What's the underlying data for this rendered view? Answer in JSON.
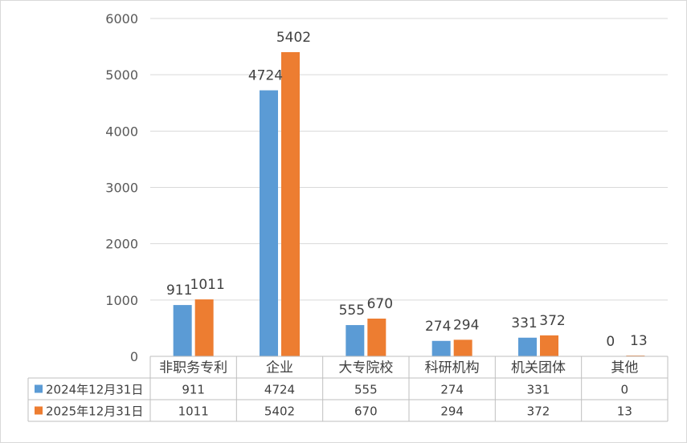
{
  "chart_data": {
    "type": "bar",
    "title": "",
    "xlabel": "",
    "ylabel": "",
    "ylim": [
      0,
      6000
    ],
    "yticks": [
      0,
      1000,
      2000,
      3000,
      4000,
      5000,
      6000
    ],
    "grid": true,
    "legend": "data-table",
    "categories": [
      "非职务专利",
      "企业",
      "大专院校",
      "科研机构",
      "机关团体",
      "其他"
    ],
    "series": [
      {
        "name": "2024年12月31日",
        "color": "#5B9BD5",
        "values": [
          911,
          4724,
          555,
          274,
          331,
          0
        ]
      },
      {
        "name": "2025年12月31日",
        "color": "#ED7D31",
        "values": [
          1011,
          5402,
          670,
          294,
          372,
          13
        ]
      }
    ]
  }
}
